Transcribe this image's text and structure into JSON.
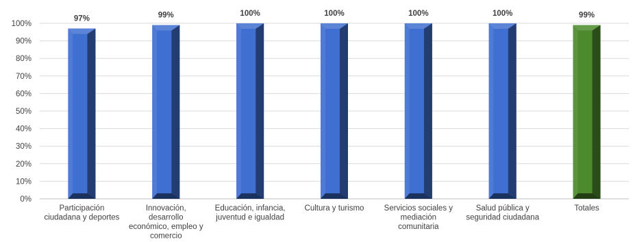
{
  "chart_data": {
    "type": "bar",
    "categories": [
      [
        "Participación",
        "ciudadana y deportes"
      ],
      [
        "Innovación,",
        "desarrollo",
        "económico, empleo y",
        "comercio"
      ],
      [
        "Educación, infancia,",
        "juventud e igualdad"
      ],
      [
        "Cultura y turismo"
      ],
      [
        "Servicios sociales y",
        "mediación",
        "comunitaria"
      ],
      [
        "Salud pública y",
        "seguridad ciudadana"
      ],
      [
        "Totales"
      ]
    ],
    "values": [
      97,
      99,
      100,
      100,
      100,
      100,
      99
    ],
    "data_labels": [
      "97%",
      "99%",
      "100%",
      "100%",
      "100%",
      "100%",
      "99%"
    ],
    "bar_colors": [
      "#3f6fd1",
      "#3f6fd1",
      "#3f6fd1",
      "#3f6fd1",
      "#3f6fd1",
      "#3f6fd1",
      "#4d8a2e"
    ],
    "yticks": [
      "0%",
      "10%",
      "20%",
      "30%",
      "40%",
      "50%",
      "60%",
      "70%",
      "80%",
      "90%",
      "100%"
    ],
    "ylim": [
      0,
      100
    ],
    "grid": true,
    "legend": "none",
    "title": "",
    "xlabel": "",
    "ylabel": ""
  }
}
